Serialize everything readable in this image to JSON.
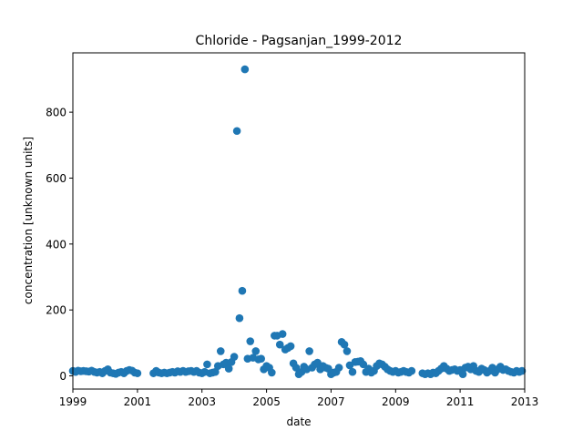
{
  "chart_data": {
    "type": "scatter",
    "title": "Chloride - Pagsanjan_1999-2012",
    "xlabel": "date",
    "ylabel": "concentration [unknown units]",
    "xlim": [
      "1999-01-01",
      "2013-01-01"
    ],
    "ylim": [
      -40,
      980
    ],
    "xticks": [
      {
        "value": "1999-01-01",
        "label": "1999"
      },
      {
        "value": "2001-01-01",
        "label": "2001"
      },
      {
        "value": "2003-01-01",
        "label": "2003"
      },
      {
        "value": "2005-01-01",
        "label": "2005"
      },
      {
        "value": "2007-01-01",
        "label": "2007"
      },
      {
        "value": "2009-01-01",
        "label": "2009"
      },
      {
        "value": "2011-01-01",
        "label": "2011"
      },
      {
        "value": "2013-01-01",
        "label": "2013"
      }
    ],
    "yticks": [
      0,
      200,
      400,
      600,
      800
    ],
    "grid": false,
    "marker_color": "#1f77b4",
    "series": [
      {
        "points": [
          {
            "x": "1999-01-01",
            "y": 15
          },
          {
            "x": "1999-02-01",
            "y": 12
          },
          {
            "x": "1999-03-01",
            "y": 16
          },
          {
            "x": "1999-04-01",
            "y": 14
          },
          {
            "x": "1999-05-01",
            "y": 15
          },
          {
            "x": "1999-06-01",
            "y": 14
          },
          {
            "x": "1999-07-01",
            "y": 13
          },
          {
            "x": "1999-08-01",
            "y": 16
          },
          {
            "x": "1999-09-01",
            "y": 12
          },
          {
            "x": "1999-10-01",
            "y": 10
          },
          {
            "x": "1999-11-01",
            "y": 12
          },
          {
            "x": "1999-12-01",
            "y": 8
          },
          {
            "x": "2000-01-01",
            "y": 15
          },
          {
            "x": "2000-02-01",
            "y": 20
          },
          {
            "x": "2000-03-01",
            "y": 10
          },
          {
            "x": "2000-04-01",
            "y": 8
          },
          {
            "x": "2000-05-01",
            "y": 6
          },
          {
            "x": "2000-06-01",
            "y": 10
          },
          {
            "x": "2000-07-01",
            "y": 12
          },
          {
            "x": "2000-08-01",
            "y": 8
          },
          {
            "x": "2000-09-01",
            "y": 15
          },
          {
            "x": "2000-10-01",
            "y": 18
          },
          {
            "x": "2000-11-01",
            "y": 16
          },
          {
            "x": "2000-12-01",
            "y": 10
          },
          {
            "x": "2001-01-01",
            "y": 8
          },
          {
            "x": "2001-07-01",
            "y": 8
          },
          {
            "x": "2001-08-01",
            "y": 15
          },
          {
            "x": "2001-09-01",
            "y": 10
          },
          {
            "x": "2001-10-01",
            "y": 8
          },
          {
            "x": "2001-11-01",
            "y": 10
          },
          {
            "x": "2001-12-01",
            "y": 8
          },
          {
            "x": "2002-01-01",
            "y": 10
          },
          {
            "x": "2002-02-01",
            "y": 12
          },
          {
            "x": "2002-03-01",
            "y": 10
          },
          {
            "x": "2002-04-01",
            "y": 14
          },
          {
            "x": "2002-05-01",
            "y": 12
          },
          {
            "x": "2002-06-01",
            "y": 15
          },
          {
            "x": "2002-07-01",
            "y": 12
          },
          {
            "x": "2002-08-01",
            "y": 14
          },
          {
            "x": "2002-09-01",
            "y": 15
          },
          {
            "x": "2002-10-01",
            "y": 12
          },
          {
            "x": "2002-11-01",
            "y": 15
          },
          {
            "x": "2002-12-01",
            "y": 10
          },
          {
            "x": "2003-01-01",
            "y": 8
          },
          {
            "x": "2003-02-01",
            "y": 12
          },
          {
            "x": "2003-03-01",
            "y": 35
          },
          {
            "x": "2003-04-01",
            "y": 8
          },
          {
            "x": "2003-05-01",
            "y": 10
          },
          {
            "x": "2003-06-01",
            "y": 12
          },
          {
            "x": "2003-07-01",
            "y": 30
          },
          {
            "x": "2003-08-01",
            "y": 75
          },
          {
            "x": "2003-09-01",
            "y": 35
          },
          {
            "x": "2003-10-01",
            "y": 40
          },
          {
            "x": "2003-11-01",
            "y": 22
          },
          {
            "x": "2003-12-01",
            "y": 42
          },
          {
            "x": "2004-01-01",
            "y": 58
          },
          {
            "x": "2004-02-01",
            "y": 743
          },
          {
            "x": "2004-03-01",
            "y": 175
          },
          {
            "x": "2004-04-01",
            "y": 258
          },
          {
            "x": "2004-05-01",
            "y": 930
          },
          {
            "x": "2004-06-01",
            "y": 52
          },
          {
            "x": "2004-07-01",
            "y": 105
          },
          {
            "x": "2004-08-01",
            "y": 55
          },
          {
            "x": "2004-09-01",
            "y": 75
          },
          {
            "x": "2004-10-01",
            "y": 50
          },
          {
            "x": "2004-11-01",
            "y": 52
          },
          {
            "x": "2004-12-01",
            "y": 20
          },
          {
            "x": "2005-01-01",
            "y": 30
          },
          {
            "x": "2005-02-01",
            "y": 25
          },
          {
            "x": "2005-03-01",
            "y": 10
          },
          {
            "x": "2005-04-01",
            "y": 122
          },
          {
            "x": "2005-05-01",
            "y": 122
          },
          {
            "x": "2005-06-01",
            "y": 95
          },
          {
            "x": "2005-07-01",
            "y": 127
          },
          {
            "x": "2005-08-01",
            "y": 80
          },
          {
            "x": "2005-09-01",
            "y": 85
          },
          {
            "x": "2005-10-01",
            "y": 90
          },
          {
            "x": "2005-11-01",
            "y": 38
          },
          {
            "x": "2005-12-01",
            "y": 25
          },
          {
            "x": "2006-01-01",
            "y": 5
          },
          {
            "x": "2006-02-01",
            "y": 12
          },
          {
            "x": "2006-03-01",
            "y": 28
          },
          {
            "x": "2006-04-01",
            "y": 20
          },
          {
            "x": "2006-05-01",
            "y": 75
          },
          {
            "x": "2006-06-01",
            "y": 25
          },
          {
            "x": "2006-07-01",
            "y": 35
          },
          {
            "x": "2006-08-01",
            "y": 40
          },
          {
            "x": "2006-09-01",
            "y": 20
          },
          {
            "x": "2006-10-01",
            "y": 30
          },
          {
            "x": "2006-11-01",
            "y": 25
          },
          {
            "x": "2006-12-01",
            "y": 22
          },
          {
            "x": "2007-01-01",
            "y": 5
          },
          {
            "x": "2007-02-01",
            "y": 10
          },
          {
            "x": "2007-03-01",
            "y": 12
          },
          {
            "x": "2007-04-01",
            "y": 25
          },
          {
            "x": "2007-05-01",
            "y": 103
          },
          {
            "x": "2007-06-01",
            "y": 95
          },
          {
            "x": "2007-07-01",
            "y": 75
          },
          {
            "x": "2007-08-01",
            "y": 32
          },
          {
            "x": "2007-09-01",
            "y": 12
          },
          {
            "x": "2007-10-01",
            "y": 42
          },
          {
            "x": "2007-11-01",
            "y": 43
          },
          {
            "x": "2007-12-01",
            "y": 45
          },
          {
            "x": "2008-01-01",
            "y": 35
          },
          {
            "x": "2008-02-01",
            "y": 12
          },
          {
            "x": "2008-03-01",
            "y": 22
          },
          {
            "x": "2008-04-01",
            "y": 10
          },
          {
            "x": "2008-05-01",
            "y": 15
          },
          {
            "x": "2008-06-01",
            "y": 30
          },
          {
            "x": "2008-07-01",
            "y": 38
          },
          {
            "x": "2008-08-01",
            "y": 35
          },
          {
            "x": "2008-09-01",
            "y": 28
          },
          {
            "x": "2008-10-01",
            "y": 20
          },
          {
            "x": "2008-11-01",
            "y": 15
          },
          {
            "x": "2008-12-01",
            "y": 12
          },
          {
            "x": "2009-01-01",
            "y": 15
          },
          {
            "x": "2009-02-01",
            "y": 10
          },
          {
            "x": "2009-03-01",
            "y": 12
          },
          {
            "x": "2009-04-01",
            "y": 15
          },
          {
            "x": "2009-05-01",
            "y": 12
          },
          {
            "x": "2009-06-01",
            "y": 10
          },
          {
            "x": "2009-07-01",
            "y": 15
          },
          {
            "x": "2009-11-01",
            "y": 8
          },
          {
            "x": "2009-12-01",
            "y": 5
          },
          {
            "x": "2010-01-01",
            "y": 8
          },
          {
            "x": "2010-02-01",
            "y": 5
          },
          {
            "x": "2010-03-01",
            "y": 10
          },
          {
            "x": "2010-04-01",
            "y": 8
          },
          {
            "x": "2010-05-01",
            "y": 15
          },
          {
            "x": "2010-06-01",
            "y": 22
          },
          {
            "x": "2010-07-01",
            "y": 30
          },
          {
            "x": "2010-08-01",
            "y": 22
          },
          {
            "x": "2010-09-01",
            "y": 15
          },
          {
            "x": "2010-10-01",
            "y": 18
          },
          {
            "x": "2010-11-01",
            "y": 20
          },
          {
            "x": "2010-12-01",
            "y": 15
          },
          {
            "x": "2011-01-01",
            "y": 18
          },
          {
            "x": "2011-02-01",
            "y": 5
          },
          {
            "x": "2011-03-01",
            "y": 25
          },
          {
            "x": "2011-04-01",
            "y": 28
          },
          {
            "x": "2011-05-01",
            "y": 20
          },
          {
            "x": "2011-06-01",
            "y": 30
          },
          {
            "x": "2011-07-01",
            "y": 15
          },
          {
            "x": "2011-08-01",
            "y": 12
          },
          {
            "x": "2011-09-01",
            "y": 22
          },
          {
            "x": "2011-10-01",
            "y": 18
          },
          {
            "x": "2011-11-01",
            "y": 10
          },
          {
            "x": "2011-12-01",
            "y": 15
          },
          {
            "x": "2012-01-01",
            "y": 25
          },
          {
            "x": "2012-02-01",
            "y": 10
          },
          {
            "x": "2012-03-01",
            "y": 20
          },
          {
            "x": "2012-04-01",
            "y": 28
          },
          {
            "x": "2012-05-01",
            "y": 18
          },
          {
            "x": "2012-06-01",
            "y": 20
          },
          {
            "x": "2012-07-01",
            "y": 15
          },
          {
            "x": "2012-08-01",
            "y": 12
          },
          {
            "x": "2012-09-01",
            "y": 10
          },
          {
            "x": "2012-10-01",
            "y": 15
          },
          {
            "x": "2012-11-01",
            "y": 12
          },
          {
            "x": "2012-12-01",
            "y": 15
          }
        ]
      }
    ]
  }
}
